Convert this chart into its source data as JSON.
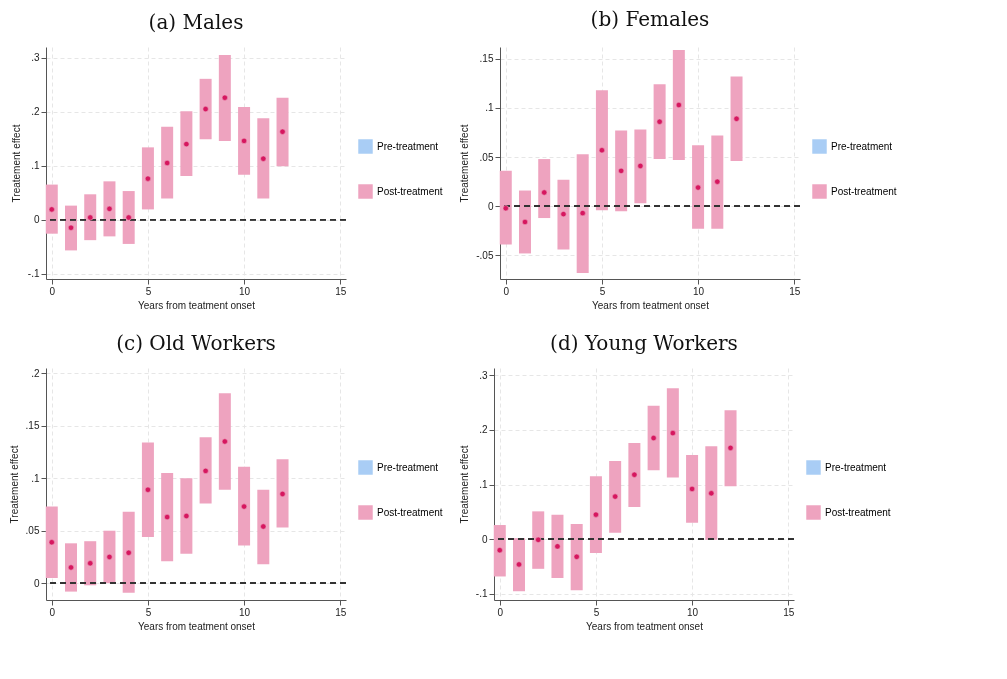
{
  "chart_data": [
    {
      "type": "scatter",
      "title": "(a) Males",
      "xlabel": "Years from teatment onset",
      "ylabel": "Treatement effect",
      "x": [
        0,
        1,
        2,
        3,
        4,
        5,
        6,
        7,
        8,
        9,
        10,
        11,
        12
      ],
      "xlim": [
        -0.3,
        15.3
      ],
      "xticks": [
        0,
        5,
        10,
        15
      ],
      "ylim": [
        -0.11,
        0.32
      ],
      "yticks": [
        {
          "value": -0.1,
          "label": "-.1"
        },
        {
          "value": 0,
          "label": "0"
        },
        {
          "value": 0.1,
          "label": ".1"
        },
        {
          "value": 0.2,
          "label": ".2"
        },
        {
          "value": 0.3,
          "label": ".3"
        }
      ],
      "grid": true,
      "legend": "right",
      "marker": "circle",
      "ref_lines": [
        {
          "axis": "y",
          "value": 0,
          "line_style": "dashed"
        }
      ],
      "series": [
        {
          "name": "Pre-treatment",
          "color": "#a9cdf5",
          "values": [
            null,
            null,
            null,
            null,
            null,
            null,
            null,
            null,
            null,
            null,
            null,
            null,
            null
          ]
        },
        {
          "name": "Post-treatment",
          "color": "#eea3bf",
          "values": [
            0.019,
            -0.015,
            0.004,
            0.02,
            0.004,
            0.076,
            0.105,
            0.14,
            0.205,
            0.226,
            0.146,
            0.113,
            0.163
          ],
          "errors": [
            [
              -0.026,
              0.065
            ],
            [
              -0.057,
              0.026
            ],
            [
              -0.038,
              0.047
            ],
            [
              -0.031,
              0.071
            ],
            [
              -0.045,
              0.053
            ],
            [
              0.019,
              0.134
            ],
            [
              0.039,
              0.172
            ],
            [
              0.081,
              0.201
            ],
            [
              0.149,
              0.261
            ],
            [
              0.146,
              0.305
            ],
            [
              0.083,
              0.209
            ],
            [
              0.039,
              0.188
            ],
            [
              0.099,
              0.226
            ]
          ]
        }
      ]
    },
    {
      "type": "scatter",
      "title": "(b) Females",
      "xlabel": "Years from teatment onset",
      "ylabel": "Treatement effect",
      "x": [
        0,
        1,
        2,
        3,
        4,
        5,
        6,
        7,
        8,
        9,
        10,
        11,
        12
      ],
      "xlim": [
        -0.3,
        15.3
      ],
      "xticks": [
        0,
        5,
        10,
        15
      ],
      "ylim": [
        -0.074,
        0.162
      ],
      "yticks": [
        {
          "value": -0.05,
          "label": "-.05"
        },
        {
          "value": 0,
          "label": "0"
        },
        {
          "value": 0.05,
          "label": ".05"
        },
        {
          "value": 0.1,
          "label": ".1"
        },
        {
          "value": 0.15,
          "label": ".15"
        }
      ],
      "grid": true,
      "legend": "right",
      "marker": "circle",
      "ref_lines": [
        {
          "axis": "y",
          "value": 0,
          "line_style": "dashed"
        }
      ],
      "series": [
        {
          "name": "Pre-treatment",
          "color": "#a9cdf5",
          "values": [
            null,
            null,
            null,
            null,
            null,
            null,
            null,
            null,
            null,
            null,
            null,
            null,
            null
          ]
        },
        {
          "name": "Post-treatment",
          "color": "#eea3bf",
          "values": [
            -0.002,
            -0.016,
            0.014,
            -0.008,
            -0.007,
            0.057,
            0.036,
            0.041,
            0.086,
            0.103,
            0.019,
            0.025,
            0.089
          ],
          "errors": [
            [
              -0.039,
              0.036
            ],
            [
              -0.048,
              0.016
            ],
            [
              -0.012,
              0.048
            ],
            [
              -0.044,
              0.027
            ],
            [
              -0.068,
              0.053
            ],
            [
              -0.004,
              0.118
            ],
            [
              -0.005,
              0.077
            ],
            [
              0.003,
              0.078
            ],
            [
              0.048,
              0.124
            ],
            [
              0.047,
              0.159
            ],
            [
              -0.023,
              0.062
            ],
            [
              -0.023,
              0.072
            ],
            [
              0.046,
              0.132
            ]
          ]
        }
      ]
    },
    {
      "type": "scatter",
      "title": "(c) Old Workers",
      "xlabel": "Years from teatment onset",
      "ylabel": "Treatement effect",
      "x": [
        0,
        1,
        2,
        3,
        4,
        5,
        6,
        7,
        8,
        9,
        10,
        11,
        12
      ],
      "xlim": [
        -0.3,
        15.3
      ],
      "xticks": [
        0,
        5,
        10,
        15
      ],
      "ylim": [
        -0.016,
        0.205
      ],
      "yticks": [
        {
          "value": 0,
          "label": "0"
        },
        {
          "value": 0.05,
          "label": ".05"
        },
        {
          "value": 0.1,
          "label": ".1"
        },
        {
          "value": 0.15,
          "label": ".15"
        },
        {
          "value": 0.2,
          "label": ".2"
        }
      ],
      "grid": true,
      "legend": "right",
      "marker": "circle",
      "ref_lines": [
        {
          "axis": "y",
          "value": 0,
          "line_style": "dashed"
        }
      ],
      "series": [
        {
          "name": "Pre-treatment",
          "color": "#a9cdf5",
          "values": [
            null,
            null,
            null,
            null,
            null,
            null,
            null,
            null,
            null,
            null,
            null,
            null,
            null
          ]
        },
        {
          "name": "Post-treatment",
          "color": "#eea3bf",
          "values": [
            0.039,
            0.015,
            0.019,
            0.025,
            0.029,
            0.089,
            0.063,
            0.064,
            0.107,
            0.135,
            0.073,
            0.054,
            0.085
          ],
          "errors": [
            [
              0.005,
              0.073
            ],
            [
              -0.008,
              0.038
            ],
            [
              -0.002,
              0.04
            ],
            [
              0,
              0.05
            ],
            [
              -0.009,
              0.068
            ],
            [
              0.044,
              0.134
            ],
            [
              0.021,
              0.105
            ],
            [
              0.028,
              0.1
            ],
            [
              0.076,
              0.139
            ],
            [
              0.089,
              0.181
            ],
            [
              0.036,
              0.111
            ],
            [
              0.018,
              0.089
            ],
            [
              0.053,
              0.118
            ]
          ]
        }
      ]
    },
    {
      "type": "scatter",
      "title": "(d) Young Workers",
      "xlabel": "Years from teatment onset",
      "ylabel": "Treatement effect",
      "x": [
        0,
        1,
        2,
        3,
        4,
        5,
        6,
        7,
        8,
        9,
        10,
        11,
        12
      ],
      "xlim": [
        -0.3,
        15.3
      ],
      "xticks": [
        0,
        5,
        10,
        15
      ],
      "ylim": [
        -0.111,
        0.313
      ],
      "yticks": [
        {
          "value": -0.1,
          "label": "-.1"
        },
        {
          "value": 0,
          "label": "0"
        },
        {
          "value": 0.1,
          "label": ".1"
        },
        {
          "value": 0.2,
          "label": ".2"
        },
        {
          "value": 0.3,
          "label": ".3"
        }
      ],
      "grid": true,
      "legend": "right",
      "marker": "circle",
      "ref_lines": [
        {
          "axis": "y",
          "value": 0,
          "line_style": "dashed"
        }
      ],
      "series": [
        {
          "name": "Pre-treatment",
          "color": "#a9cdf5",
          "values": [
            null,
            null,
            null,
            null,
            null,
            null,
            null,
            null,
            null,
            null,
            null,
            null,
            null
          ]
        },
        {
          "name": "Post-treatment",
          "color": "#eea3bf",
          "values": [
            -0.02,
            -0.046,
            -0.001,
            -0.013,
            -0.032,
            0.045,
            0.078,
            0.118,
            0.185,
            0.194,
            0.092,
            0.084,
            0.167
          ],
          "errors": [
            [
              -0.068,
              0.026
            ],
            [
              -0.095,
              0.002
            ],
            [
              -0.054,
              0.051
            ],
            [
              -0.071,
              0.045
            ],
            [
              -0.093,
              0.028
            ],
            [
              -0.025,
              0.115
            ],
            [
              0.012,
              0.143
            ],
            [
              0.059,
              0.176
            ],
            [
              0.126,
              0.244
            ],
            [
              0.113,
              0.276
            ],
            [
              0.03,
              0.154
            ],
            [
              -0.001,
              0.17
            ],
            [
              0.097,
              0.236
            ]
          ]
        }
      ]
    }
  ]
}
